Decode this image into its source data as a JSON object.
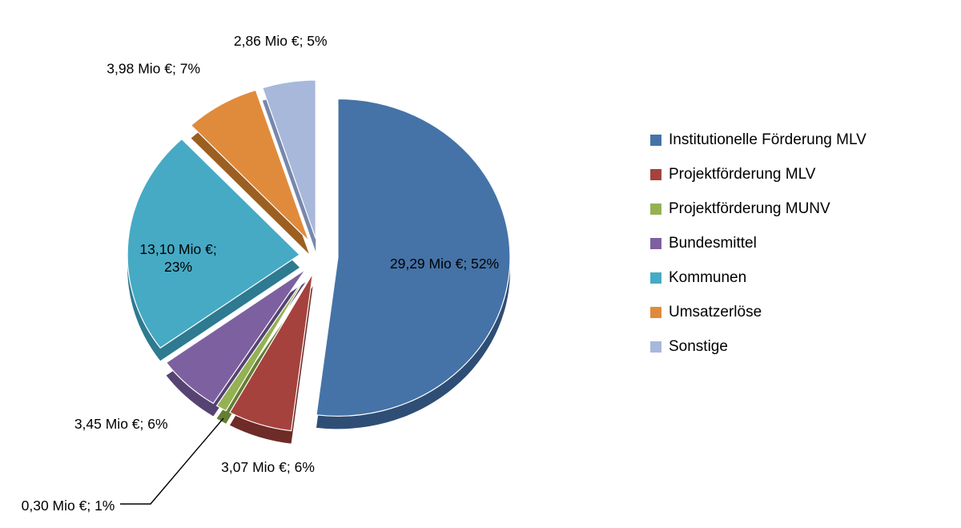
{
  "chart_data": {
    "type": "pie",
    "style": "3d_exploded",
    "title": "",
    "unit": "Mio €",
    "legend_position": "right",
    "grid": false,
    "slices": [
      {
        "name": "Institutionelle Förderung MLV",
        "value": 29.29,
        "percent": 52,
        "label": "29,29 Mio €; 52%",
        "color": "#4573A7",
        "side_color": "#2E4E75"
      },
      {
        "name": "Projektförderung MLV",
        "value": 3.07,
        "percent": 6,
        "label": "3,07 Mio €; 6%",
        "color": "#A5423D",
        "side_color": "#6E2B28"
      },
      {
        "name": "Projektförderung MUNV",
        "value": 0.3,
        "percent": 1,
        "label": "0,30 Mio €; 1%",
        "color": "#94B254",
        "side_color": "#657E34"
      },
      {
        "name": "Bundesmittel",
        "value": 3.45,
        "percent": 6,
        "label": "3,45 Mio €; 6%",
        "color": "#7D60A0",
        "side_color": "#564372"
      },
      {
        "name": "Kommunen",
        "value": 13.1,
        "percent": 23,
        "label": "13,10 Mio €; 23%",
        "label_lines": [
          "13,10 Mio €;",
          "23%"
        ],
        "color": "#46AAC5",
        "side_color": "#2E7A90"
      },
      {
        "name": "Umsatzerlöse",
        "value": 3.98,
        "percent": 7,
        "label": "3,98 Mio €; 7%",
        "color": "#E08B3C",
        "side_color": "#9C5F22"
      },
      {
        "name": "Sonstige",
        "value": 2.86,
        "percent": 5,
        "label": "2,86 Mio €; 5%",
        "color": "#A8B8DB",
        "side_color": "#7787AC"
      }
    ]
  }
}
